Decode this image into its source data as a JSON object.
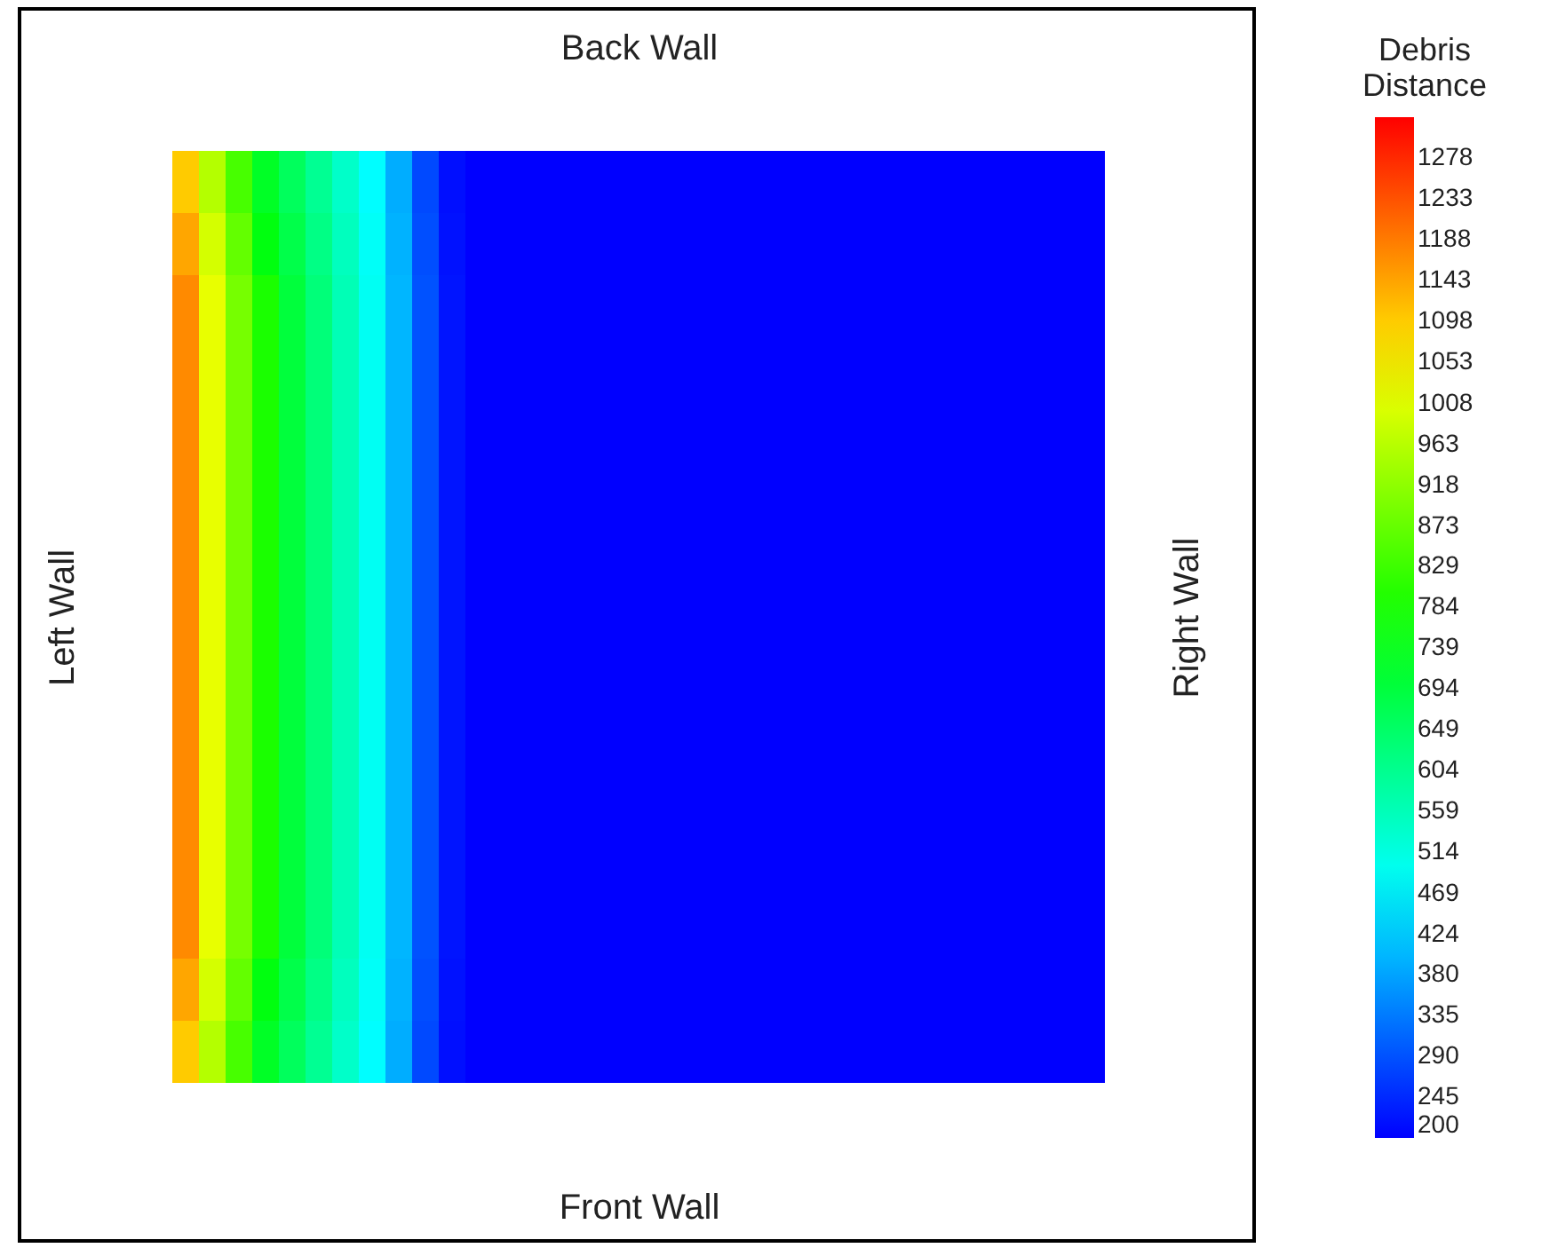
{
  "chart_data": {
    "type": "heatmap",
    "title": "Back Wall",
    "xlabel": "Front Wall",
    "ylabel": "Left Wall",
    "y2label": "Right Wall",
    "clabel": "Debris Distance",
    "tick_labels": false,
    "categories": [
      null,
      null,
      null,
      null,
      null,
      null,
      null,
      null,
      null,
      null,
      null,
      null,
      null,
      null,
      null,
      null,
      null,
      null,
      null,
      null,
      null,
      null,
      null,
      null,
      null,
      null,
      null,
      null,
      null,
      null,
      null,
      null,
      null,
      null,
      null
    ],
    "y_categories": [
      null,
      null,
      null,
      null,
      null,
      null,
      null,
      null,
      null,
      null,
      null,
      null,
      null,
      null,
      null
    ],
    "clim": [
      200,
      1323
    ],
    "cticks": [
      200,
      245,
      290,
      335,
      380,
      424,
      469,
      514,
      559,
      604,
      649,
      694,
      739,
      784,
      829,
      873,
      918,
      963,
      1008,
      1053,
      1098,
      1143,
      1188,
      1233,
      1278
    ],
    "cells": [
      [
        1100,
        960,
        840,
        720,
        660,
        600,
        540,
        480,
        390,
        280,
        215,
        200,
        200,
        200,
        200,
        200,
        200,
        200,
        200,
        200,
        200,
        200,
        200,
        200,
        200,
        200,
        200,
        200,
        200,
        200,
        200,
        200,
        200,
        200,
        200
      ],
      [
        1140,
        995,
        870,
        745,
        680,
        615,
        552,
        488,
        396,
        286,
        219,
        200,
        200,
        200,
        200,
        200,
        200,
        200,
        200,
        200,
        200,
        200,
        200,
        200,
        200,
        200,
        200,
        200,
        200,
        200,
        200,
        200,
        200,
        200,
        200
      ],
      [
        1171,
        1017,
        891,
        790,
        695,
        628,
        561,
        494,
        400,
        290,
        222,
        200,
        200,
        200,
        200,
        200,
        200,
        200,
        200,
        200,
        200,
        200,
        200,
        200,
        200,
        200,
        200,
        200,
        200,
        200,
        200,
        200,
        200,
        200,
        200
      ],
      [
        1171,
        1017,
        891,
        790,
        695,
        628,
        561,
        494,
        400,
        290,
        222,
        200,
        200,
        200,
        200,
        200,
        200,
        200,
        200,
        200,
        200,
        200,
        200,
        200,
        200,
        200,
        200,
        200,
        200,
        200,
        200,
        200,
        200,
        200,
        200
      ],
      [
        1171,
        1017,
        891,
        790,
        695,
        628,
        561,
        494,
        400,
        290,
        222,
        200,
        200,
        200,
        200,
        200,
        200,
        200,
        200,
        200,
        200,
        200,
        200,
        200,
        200,
        200,
        200,
        200,
        200,
        200,
        200,
        200,
        200,
        200,
        200
      ],
      [
        1171,
        1017,
        891,
        790,
        695,
        628,
        561,
        494,
        400,
        290,
        222,
        200,
        200,
        200,
        200,
        200,
        200,
        200,
        200,
        200,
        200,
        200,
        200,
        200,
        200,
        200,
        200,
        200,
        200,
        200,
        200,
        200,
        200,
        200,
        200
      ],
      [
        1171,
        1017,
        891,
        790,
        695,
        628,
        561,
        494,
        400,
        290,
        222,
        200,
        200,
        200,
        200,
        200,
        200,
        200,
        200,
        200,
        200,
        200,
        200,
        200,
        200,
        200,
        200,
        200,
        200,
        200,
        200,
        200,
        200,
        200,
        200
      ],
      [
        1171,
        1017,
        891,
        790,
        695,
        628,
        561,
        494,
        400,
        290,
        222,
        200,
        200,
        200,
        200,
        200,
        200,
        200,
        200,
        200,
        200,
        200,
        200,
        200,
        200,
        200,
        200,
        200,
        200,
        200,
        200,
        200,
        200,
        200,
        200
      ],
      [
        1171,
        1017,
        891,
        790,
        695,
        628,
        561,
        494,
        400,
        290,
        222,
        200,
        200,
        200,
        200,
        200,
        200,
        200,
        200,
        200,
        200,
        200,
        200,
        200,
        200,
        200,
        200,
        200,
        200,
        200,
        200,
        200,
        200,
        200,
        200
      ],
      [
        1171,
        1017,
        891,
        790,
        695,
        628,
        561,
        494,
        400,
        290,
        222,
        200,
        200,
        200,
        200,
        200,
        200,
        200,
        200,
        200,
        200,
        200,
        200,
        200,
        200,
        200,
        200,
        200,
        200,
        200,
        200,
        200,
        200,
        200,
        200
      ],
      [
        1171,
        1017,
        891,
        790,
        695,
        628,
        561,
        494,
        400,
        290,
        222,
        200,
        200,
        200,
        200,
        200,
        200,
        200,
        200,
        200,
        200,
        200,
        200,
        200,
        200,
        200,
        200,
        200,
        200,
        200,
        200,
        200,
        200,
        200,
        200
      ],
      [
        1171,
        1017,
        891,
        790,
        695,
        628,
        561,
        494,
        400,
        290,
        222,
        200,
        200,
        200,
        200,
        200,
        200,
        200,
        200,
        200,
        200,
        200,
        200,
        200,
        200,
        200,
        200,
        200,
        200,
        200,
        200,
        200,
        200,
        200,
        200
      ],
      [
        1171,
        1017,
        891,
        790,
        695,
        628,
        561,
        494,
        400,
        290,
        222,
        200,
        200,
        200,
        200,
        200,
        200,
        200,
        200,
        200,
        200,
        200,
        200,
        200,
        200,
        200,
        200,
        200,
        200,
        200,
        200,
        200,
        200,
        200,
        200
      ],
      [
        1140,
        995,
        870,
        745,
        680,
        615,
        552,
        488,
        396,
        286,
        219,
        200,
        200,
        200,
        200,
        200,
        200,
        200,
        200,
        200,
        200,
        200,
        200,
        200,
        200,
        200,
        200,
        200,
        200,
        200,
        200,
        200,
        200,
        200,
        200
      ],
      [
        1100,
        960,
        840,
        720,
        660,
        600,
        540,
        480,
        390,
        280,
        215,
        200,
        200,
        200,
        200,
        200,
        200,
        200,
        200,
        200,
        200,
        200,
        200,
        200,
        200,
        200,
        200,
        200,
        200,
        200,
        200,
        200,
        200,
        200,
        200
      ]
    ]
  }
}
